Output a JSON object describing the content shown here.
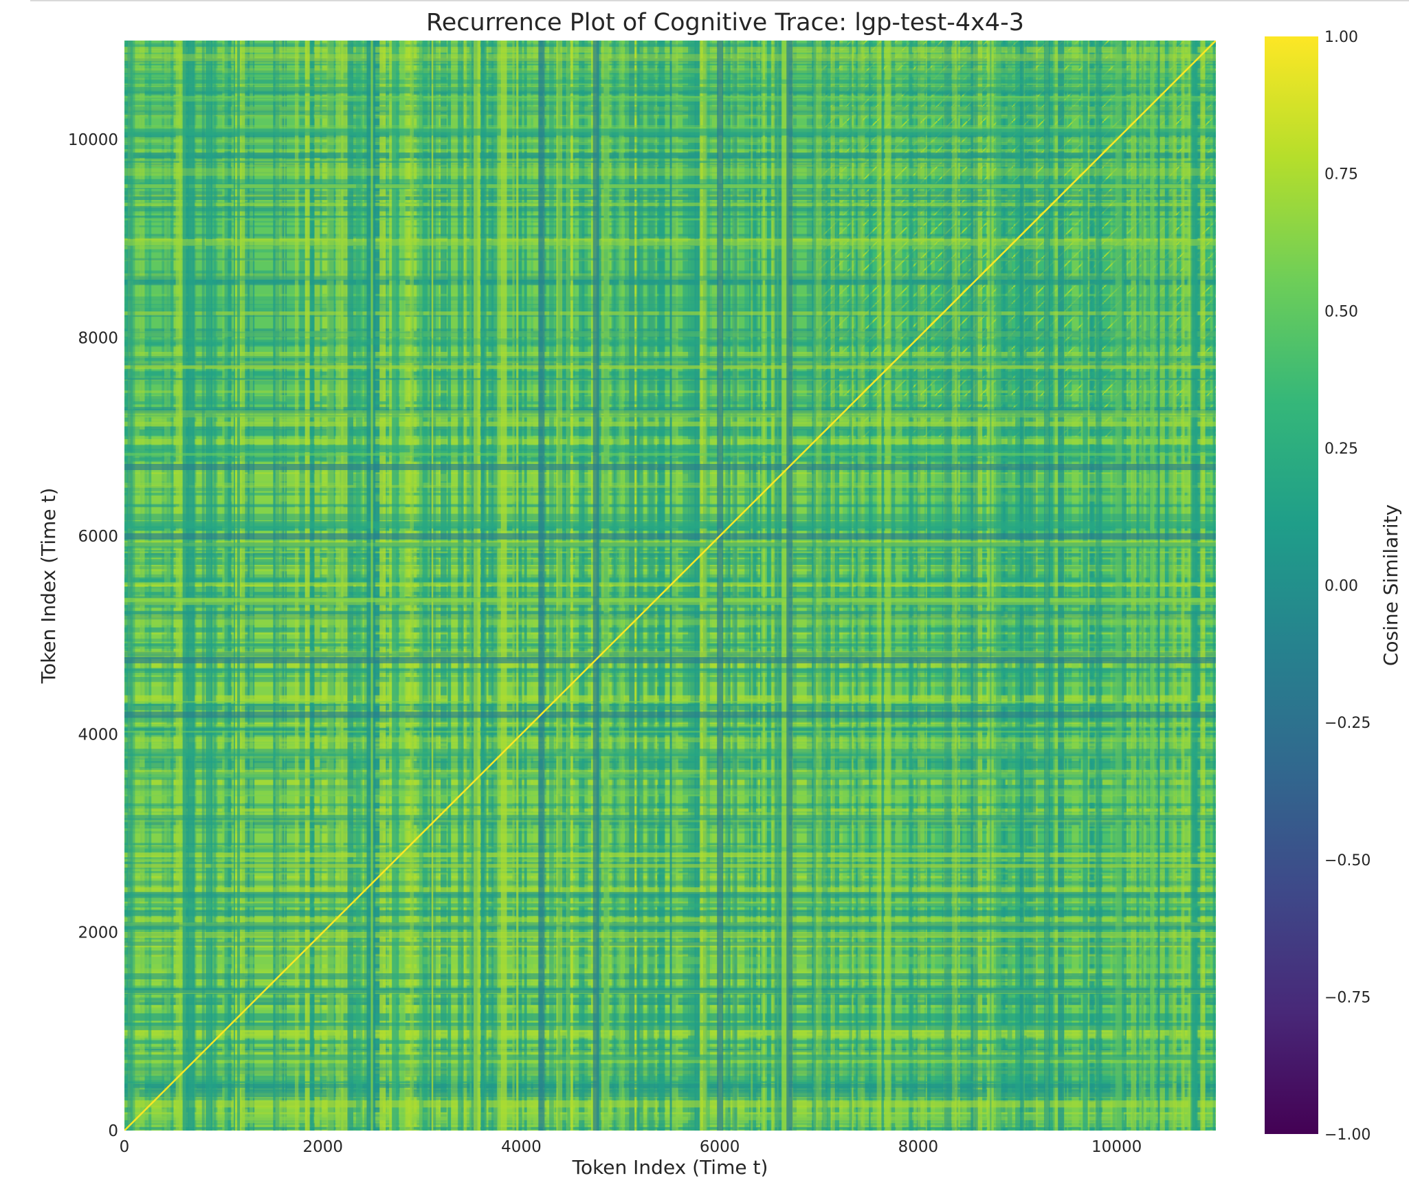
{
  "chart_data": {
    "type": "heatmap",
    "title": "Recurrence Plot of Cognitive Trace: lgp-test-4x4-3",
    "xlabel": "Token Index (Time t)",
    "ylabel": "Token Index (Time t)",
    "xlim": [
      0,
      11000
    ],
    "ylim": [
      0,
      11000
    ],
    "xticks": [
      0,
      2000,
      4000,
      6000,
      8000,
      10000
    ],
    "yticks": [
      0,
      2000,
      4000,
      6000,
      8000,
      10000
    ],
    "xtick_labels": [
      "0",
      "2000",
      "4000",
      "6000",
      "8000",
      "10000"
    ],
    "ytick_labels": [
      "0",
      "2000",
      "4000",
      "6000",
      "8000",
      "10000"
    ],
    "colormap": "viridis",
    "colorbar": {
      "label": "Cosine Similarity",
      "range": [
        -1.0,
        1.0
      ],
      "ticks": [
        1.0,
        0.75,
        0.5,
        0.25,
        0.0,
        -0.25,
        -0.5,
        -0.75,
        -1.0
      ],
      "tick_labels": [
        "1.00",
        "0.75",
        "0.50",
        "0.25",
        "0.00",
        "−0.25",
        "−0.50",
        "−0.75",
        "−1.00"
      ]
    },
    "diagonal_value": 1.0,
    "typical_similarity_range": [
      0.1,
      0.8
    ],
    "bright_region_before_token": 7000,
    "periodic_band_region_after_token": 7000,
    "dark_band_tokens": [
      4200,
      4750,
      6000,
      6700
    ]
  },
  "colors": {
    "viridis": [
      "#440154",
      "#482878",
      "#3e4989",
      "#31688e",
      "#26828e",
      "#1f9e89",
      "#35b779",
      "#6ece58",
      "#b5de2b",
      "#fde725"
    ]
  }
}
